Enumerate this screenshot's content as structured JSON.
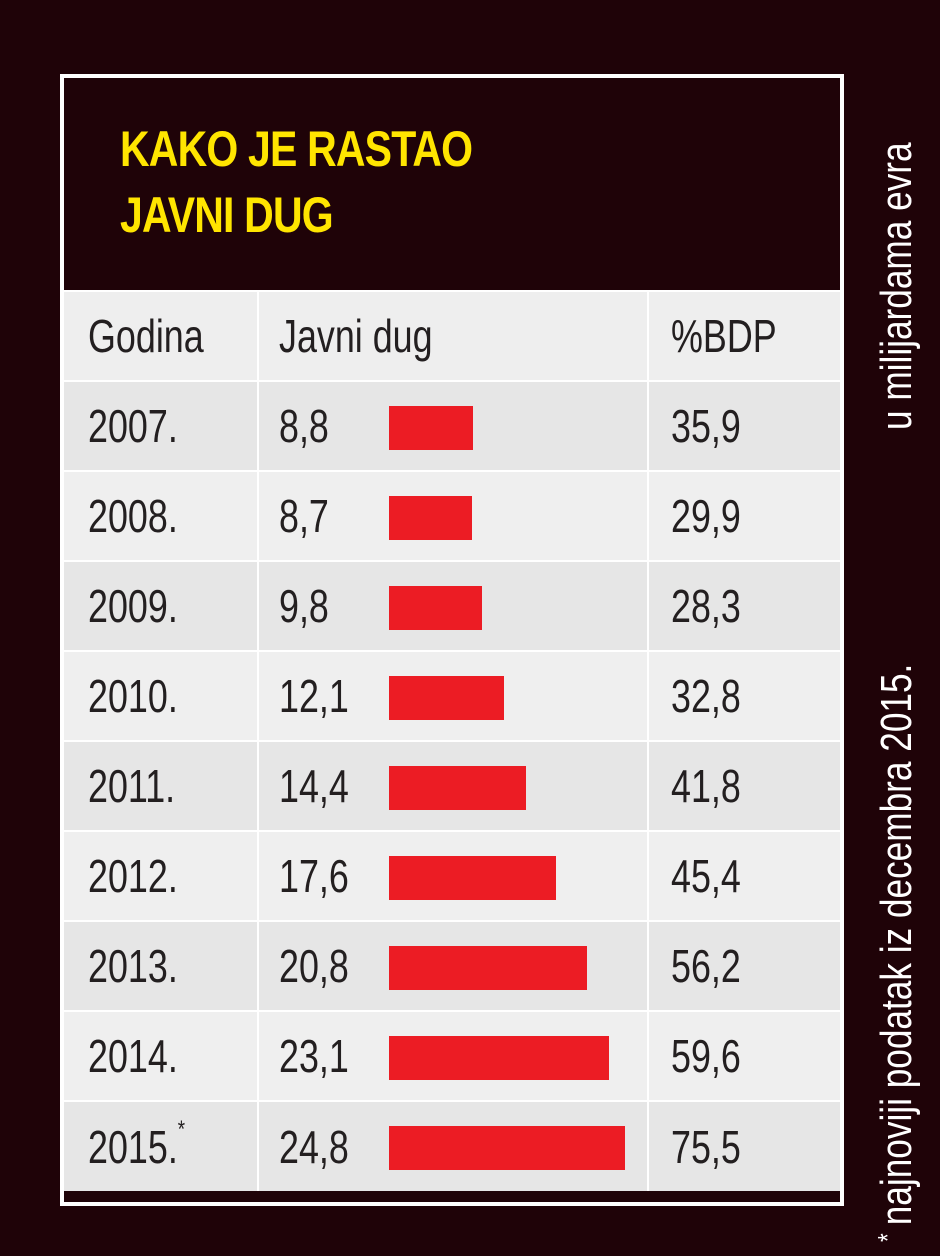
{
  "chart_data": {
    "type": "table",
    "title": [
      "KAKO JE RASTAO",
      "JAVNI DUG"
    ],
    "columns": [
      "Godina",
      "Javni dug",
      "%BDP"
    ],
    "units_note": "u milijardama evra",
    "footnote": "najnoviji podatak iz decembra 2015.",
    "footnote_marker": "*",
    "bar_color": "#ec1c24",
    "title_color": "#ffe500",
    "rows": [
      {
        "year": "2007.",
        "debt": 8.8,
        "debt_label": "8,8",
        "gdp_pct": "35,9",
        "marker": ""
      },
      {
        "year": "2008.",
        "debt": 8.7,
        "debt_label": "8,7",
        "gdp_pct": "29,9",
        "marker": ""
      },
      {
        "year": "2009.",
        "debt": 9.8,
        "debt_label": "9,8",
        "gdp_pct": "28,3",
        "marker": ""
      },
      {
        "year": "2010.",
        "debt": 12.1,
        "debt_label": "12,1",
        "gdp_pct": "32,8",
        "marker": ""
      },
      {
        "year": "2011.",
        "debt": 14.4,
        "debt_label": "14,4",
        "gdp_pct": "41,8",
        "marker": ""
      },
      {
        "year": "2012.",
        "debt": 17.6,
        "debt_label": "17,6",
        "gdp_pct": "45,4",
        "marker": ""
      },
      {
        "year": "2013.",
        "debt": 20.8,
        "debt_label": "20,8",
        "gdp_pct": "56,2",
        "marker": ""
      },
      {
        "year": "2014.",
        "debt": 23.1,
        "debt_label": "23,1",
        "gdp_pct": "59,6",
        "marker": ""
      },
      {
        "year": "2015.",
        "debt": 24.8,
        "debt_label": "24,8",
        "gdp_pct": "75,5",
        "marker": "*"
      }
    ]
  }
}
